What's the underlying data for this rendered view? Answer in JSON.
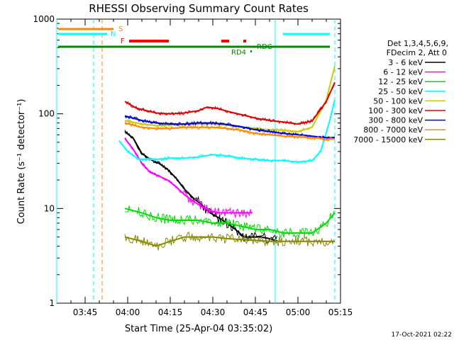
{
  "chart_data": {
    "type": "line",
    "title": "RHESSI Observing Summary Count Rates",
    "xlabel": "Start Time (25-Apr-04 03:35:02)",
    "ylabel": "Count Rate (s⁻¹ detector⁻¹)",
    "yscale": "log",
    "ylim": [
      1,
      1000
    ],
    "xlim": [
      "03:35",
      "05:15"
    ],
    "x_ticks": [
      "03:45",
      "04:00",
      "04:15",
      "04:30",
      "04:45",
      "05:00",
      "05:15"
    ],
    "y_ticks": [
      "1",
      "10",
      "100",
      "1000"
    ],
    "grid": false,
    "legend_position": "right",
    "legend_header": [
      "Det 1,3,4,5,6,9,",
      "FDecim 2, Att 0"
    ],
    "date_stamp": "17-Oct-2021 02:22",
    "series": [
      {
        "name": "3 - 6 keV",
        "color": "#000000",
        "x": [
          "03:59",
          "04:02",
          "04:05",
          "04:08",
          "04:11",
          "04:14",
          "04:17",
          "04:20",
          "04:23",
          "04:26",
          "04:29",
          "04:32",
          "04:35",
          "04:38",
          "04:41",
          "04:44",
          "04:47",
          "04:50",
          "04:53"
        ],
        "values": [
          65,
          55,
          38,
          33,
          30,
          26,
          21,
          16,
          13,
          11,
          9,
          8,
          7,
          6,
          5,
          5,
          5,
          4.8,
          4.5
        ]
      },
      {
        "name": "6 - 12 keV",
        "color": "#ff00ff",
        "x": [
          "03:59",
          "04:02",
          "04:05",
          "04:08",
          "04:11",
          "04:14",
          "04:17",
          "04:20",
          "04:23",
          "04:26",
          "04:29",
          "04:32",
          "04:35",
          "04:38",
          "04:41",
          "04:44"
        ],
        "values": [
          55,
          42,
          30,
          24,
          22,
          20,
          17,
          14,
          12,
          10.5,
          9.5,
          9,
          9,
          9,
          9,
          9
        ]
      },
      {
        "name": "12 - 25 keV",
        "color": "#00dd00",
        "x": [
          "03:59",
          "04:05",
          "04:10",
          "04:15",
          "04:20",
          "04:25",
          "04:30",
          "04:35",
          "04:40",
          "04:45",
          "04:50",
          "04:55",
          "05:00",
          "05:05",
          "05:10",
          "05:13"
        ],
        "values": [
          10,
          9,
          8,
          7.5,
          7.5,
          7.5,
          7,
          7,
          6.5,
          6,
          6,
          5.5,
          5.5,
          5.5,
          7,
          9
        ]
      },
      {
        "name": "25 - 50 keV",
        "color": "#00ffff",
        "x": [
          "03:57",
          "04:00",
          "04:04",
          "04:10",
          "04:15",
          "04:20",
          "04:25",
          "04:30",
          "04:35",
          "04:40",
          "04:45",
          "04:50",
          "04:55",
          "05:00",
          "05:05",
          "05:08",
          "05:11",
          "05:13"
        ],
        "values": [
          52,
          40,
          33,
          33,
          34,
          34,
          35,
          37,
          36,
          34,
          33,
          32,
          32,
          31,
          32,
          40,
          80,
          140
        ]
      },
      {
        "name": "50 - 100 keV",
        "color": "#cccc00",
        "x": [
          "03:59",
          "04:05",
          "04:10",
          "04:15",
          "04:20",
          "04:25",
          "04:30",
          "04:35",
          "04:40",
          "04:45",
          "04:50",
          "04:55",
          "05:00",
          "05:05",
          "05:10",
          "05:13"
        ],
        "values": [
          85,
          78,
          75,
          76,
          77,
          78,
          78,
          76,
          72,
          70,
          68,
          67,
          65,
          72,
          140,
          320
        ]
      },
      {
        "name": "100 - 300 keV",
        "color": "#dd0000",
        "x": [
          "03:59",
          "04:03",
          "04:10",
          "04:15",
          "04:20",
          "04:25",
          "04:28",
          "04:32",
          "04:37",
          "04:42",
          "04:45",
          "04:50",
          "04:55",
          "05:00",
          "05:05",
          "05:10",
          "05:13"
        ],
        "values": [
          135,
          115,
          102,
          100,
          102,
          108,
          118,
          113,
          103,
          95,
          90,
          85,
          82,
          78,
          84,
          135,
          215
        ]
      },
      {
        "name": "300 - 800 keV",
        "color": "#0000dd",
        "x": [
          "03:59",
          "04:05",
          "04:10",
          "04:15",
          "04:20",
          "04:25",
          "04:30",
          "04:35",
          "04:40",
          "04:45",
          "04:50",
          "04:55",
          "05:00",
          "05:05",
          "05:10",
          "05:13"
        ],
        "values": [
          95,
          85,
          80,
          78,
          78,
          80,
          80,
          77,
          73,
          68,
          65,
          62,
          60,
          58,
          56,
          56
        ]
      },
      {
        "name": "800 - 7000 keV",
        "color": "#ff8800",
        "x": [
          "03:59",
          "04:05",
          "04:10",
          "04:15",
          "04:20",
          "04:25",
          "04:30",
          "04:35",
          "04:40",
          "04:45",
          "04:50",
          "04:55",
          "05:00",
          "05:05",
          "05:10",
          "05:13"
        ],
        "values": [
          80,
          72,
          70,
          70,
          72,
          72,
          72,
          70,
          67,
          62,
          60,
          58,
          57,
          56,
          54,
          54
        ]
      },
      {
        "name": "7000 - 15000 keV",
        "color": "#888800",
        "x": [
          "03:59",
          "04:05",
          "04:10",
          "04:15",
          "04:20",
          "04:25",
          "04:30",
          "04:35",
          "04:40",
          "04:45",
          "04:50",
          "04:55",
          "05:00",
          "05:05",
          "05:10",
          "05:13"
        ],
        "values": [
          5,
          4.5,
          4,
          4.5,
          5,
          5,
          5,
          4.8,
          4.7,
          4.6,
          4.5,
          4.5,
          4.5,
          4.5,
          4.5,
          4.5
        ]
      }
    ],
    "vertical_markers": [
      {
        "time": "03:35",
        "color": "#00ffff",
        "style": "solid"
      },
      {
        "time": "03:48",
        "color": "#00ffff",
        "style": "dashed"
      },
      {
        "time": "03:51",
        "color": "#ff8800",
        "style": "dashed"
      },
      {
        "time": "04:52",
        "color": "#00ffff",
        "style": "solid"
      },
      {
        "time": "05:13",
        "color": "#00ffff",
        "style": "dashed"
      }
    ],
    "annotations": [
      {
        "text": "S",
        "color": "#ff8800"
      },
      {
        "text": "N",
        "color": "#00ffff"
      },
      {
        "text": "F",
        "color": "#ff0000"
      },
      {
        "text": "RD4",
        "color": "#008800"
      },
      {
        "text": "RDC",
        "color": "#008800"
      }
    ]
  }
}
